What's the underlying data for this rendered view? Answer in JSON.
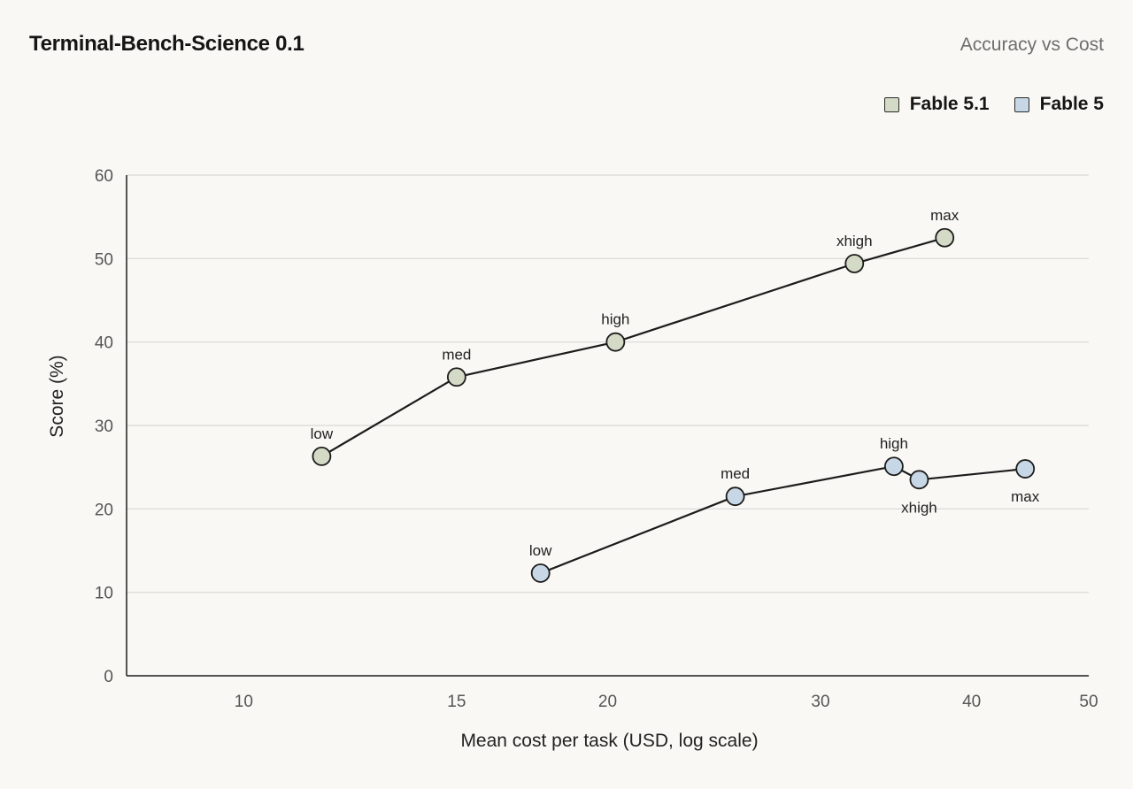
{
  "header": {
    "title": "Terminal-Bench-Science 0.1",
    "subtitle": "Accuracy vs Cost"
  },
  "chart_data": {
    "type": "line",
    "title": "Terminal-Bench-Science 0.1",
    "subtitle": "Accuracy vs Cost",
    "xlabel": "Mean cost per task (USD, log scale)",
    "ylabel": "Score (%)",
    "x_scale": "log",
    "xlim": [
      8,
      50
    ],
    "ylim": [
      0,
      60
    ],
    "x_ticks": [
      10,
      15,
      20,
      30,
      40,
      50
    ],
    "y_ticks": [
      0,
      10,
      20,
      30,
      40,
      50,
      60
    ],
    "grid": "horizontal",
    "legend_position": "top-right",
    "series": [
      {
        "name": "Fable 5.1",
        "color": "#d3dac5",
        "points": [
          {
            "label": "low",
            "x": 11.6,
            "y": 26.3,
            "label_pos": "above"
          },
          {
            "label": "med",
            "x": 15.0,
            "y": 35.8,
            "label_pos": "above"
          },
          {
            "label": "high",
            "x": 20.3,
            "y": 40.0,
            "label_pos": "above"
          },
          {
            "label": "xhigh",
            "x": 32.0,
            "y": 49.4,
            "label_pos": "above"
          },
          {
            "label": "max",
            "x": 38.0,
            "y": 52.5,
            "label_pos": "above"
          }
        ]
      },
      {
        "name": "Fable 5",
        "color": "#c8d7e6",
        "points": [
          {
            "label": "low",
            "x": 17.6,
            "y": 12.3,
            "label_pos": "above"
          },
          {
            "label": "med",
            "x": 25.5,
            "y": 21.5,
            "label_pos": "above"
          },
          {
            "label": "high",
            "x": 34.5,
            "y": 25.1,
            "label_pos": "above"
          },
          {
            "label": "xhigh",
            "x": 36.2,
            "y": 23.5,
            "label_pos": "below"
          },
          {
            "label": "max",
            "x": 44.3,
            "y": 24.8,
            "label_pos": "below"
          }
        ]
      }
    ]
  },
  "colors": {
    "background": "#f9f8f4",
    "line": "#1c1c1c",
    "grid": "#d8d8d4",
    "axis": "#1c1c1c"
  }
}
